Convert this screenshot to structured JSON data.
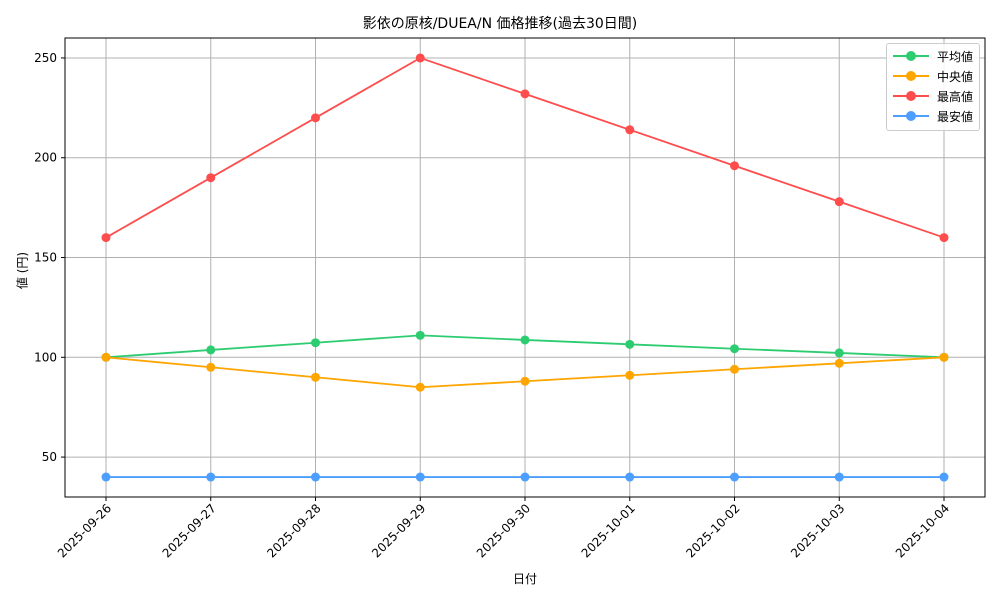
{
  "chart_data": {
    "type": "line",
    "title": "影依の原核/DUEA/N 価格推移(過去30日間)",
    "xlabel": "日付",
    "ylabel": "値 (円)",
    "categories": [
      "2025-09-26",
      "2025-09-27",
      "2025-09-28",
      "2025-09-29",
      "2025-09-30",
      "2025-10-01",
      "2025-10-02",
      "2025-10-03",
      "2025-10-04"
    ],
    "series": [
      {
        "name": "平均値",
        "color": "#2ecc71",
        "values": [
          100,
          103.7,
          107.3,
          111,
          108.7,
          106.5,
          104.3,
          102.2,
          100
        ]
      },
      {
        "name": "中央値",
        "color": "#ffa500",
        "values": [
          100,
          95,
          90,
          85,
          88,
          91,
          94,
          97,
          100
        ]
      },
      {
        "name": "最高値",
        "color": "#ff4d4d",
        "values": [
          160,
          190,
          220,
          250,
          232,
          214,
          196,
          178,
          160
        ]
      },
      {
        "name": "最安値",
        "color": "#4d9fff",
        "values": [
          40,
          40,
          40,
          40,
          40,
          40,
          40,
          40,
          40
        ]
      }
    ],
    "yticks": [
      50,
      100,
      150,
      200,
      250
    ],
    "ylim": [
      30,
      260
    ],
    "grid": true,
    "legend_position": "upper right"
  }
}
